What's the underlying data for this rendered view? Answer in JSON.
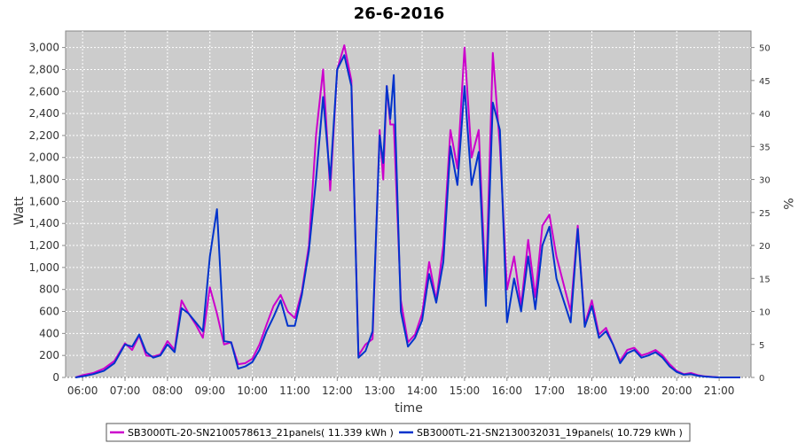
{
  "chart_data": {
    "type": "line",
    "title": "26-6-2016",
    "xlabel": "time",
    "ylabel": "Watt",
    "y2label": "%",
    "ylim": [
      0,
      3150
    ],
    "y2lim": [
      0,
      52.5
    ],
    "xlim_hours": [
      5.6,
      21.75
    ],
    "grid": true,
    "legend_position": "bottom",
    "x_ticks": [
      "06:00",
      "07:00",
      "08:00",
      "09:00",
      "10:00",
      "11:00",
      "12:00",
      "13:00",
      "14:00",
      "15:00",
      "16:00",
      "17:00",
      "18:00",
      "19:00",
      "20:00",
      "21:00"
    ],
    "y_ticks": [
      "0",
      "200",
      "400",
      "600",
      "800",
      "1,000",
      "1,200",
      "1,400",
      "1,600",
      "1,800",
      "2,000",
      "2,200",
      "2,400",
      "2,600",
      "2,800",
      "3,000"
    ],
    "y2_ticks": [
      "0",
      "5",
      "10",
      "15",
      "20",
      "25",
      "30",
      "35",
      "40",
      "45",
      "50"
    ],
    "x": [
      "05:50",
      "06:00",
      "06:15",
      "06:30",
      "06:45",
      "07:00",
      "07:10",
      "07:20",
      "07:30",
      "07:40",
      "07:50",
      "08:00",
      "08:10",
      "08:20",
      "08:30",
      "08:40",
      "08:50",
      "09:00",
      "09:10",
      "09:20",
      "09:30",
      "09:40",
      "09:50",
      "10:00",
      "10:10",
      "10:20",
      "10:30",
      "10:40",
      "10:50",
      "11:00",
      "11:10",
      "11:20",
      "11:30",
      "11:40",
      "11:50",
      "12:00",
      "12:10",
      "12:20",
      "12:30",
      "12:40",
      "12:50",
      "13:00",
      "13:05",
      "13:10",
      "13:15",
      "13:20",
      "13:30",
      "13:40",
      "13:50",
      "14:00",
      "14:10",
      "14:20",
      "14:30",
      "14:40",
      "14:50",
      "15:00",
      "15:10",
      "15:20",
      "15:30",
      "15:40",
      "15:50",
      "16:00",
      "16:10",
      "16:20",
      "16:30",
      "16:40",
      "16:50",
      "17:00",
      "17:10",
      "17:20",
      "17:30",
      "17:40",
      "17:50",
      "18:00",
      "18:10",
      "18:20",
      "18:30",
      "18:40",
      "18:50",
      "19:00",
      "19:10",
      "19:20",
      "19:30",
      "19:40",
      "19:50",
      "20:00",
      "20:10",
      "20:20",
      "20:30",
      "20:40",
      "20:50",
      "21:00",
      "21:10",
      "21:20",
      "21:30"
    ],
    "series": [
      {
        "name": "SB3000TL-20-SN2100578613_21panels( 11.339 kWh )",
        "color": "#cc00cc",
        "values": [
          0,
          20,
          40,
          80,
          150,
          310,
          250,
          380,
          200,
          190,
          210,
          330,
          250,
          700,
          580,
          480,
          360,
          820,
          580,
          300,
          320,
          120,
          130,
          170,
          300,
          480,
          650,
          750,
          600,
          540,
          780,
          1200,
          2200,
          2800,
          1700,
          2800,
          3020,
          2700,
          200,
          300,
          350,
          2250,
          1800,
          2650,
          2300,
          2300,
          700,
          320,
          390,
          580,
          1050,
          700,
          1200,
          2250,
          1900,
          3000,
          2000,
          2250,
          780,
          2950,
          2100,
          800,
          1100,
          650,
          1250,
          730,
          1380,
          1480,
          1100,
          850,
          600,
          1380,
          480,
          700,
          390,
          450,
          300,
          150,
          250,
          270,
          200,
          220,
          250,
          200,
          120,
          60,
          30,
          40,
          20,
          10,
          5,
          0,
          0,
          0,
          0
        ]
      },
      {
        "name": "SB3000TL-21-SN2130032031_19panels( 10.729 kWh )",
        "color": "#0033cc",
        "values": [
          0,
          10,
          30,
          60,
          130,
          300,
          280,
          390,
          230,
          180,
          200,
          300,
          230,
          630,
          580,
          500,
          420,
          1100,
          1530,
          330,
          320,
          80,
          100,
          140,
          250,
          420,
          550,
          700,
          470,
          470,
          750,
          1150,
          1800,
          2550,
          1800,
          2800,
          2930,
          2650,
          180,
          240,
          420,
          2200,
          1950,
          2650,
          2350,
          2750,
          600,
          280,
          360,
          520,
          940,
          680,
          1050,
          2100,
          1750,
          2650,
          1750,
          2050,
          650,
          2500,
          2250,
          500,
          900,
          600,
          1100,
          620,
          1200,
          1370,
          900,
          700,
          500,
          1350,
          460,
          650,
          360,
          420,
          300,
          130,
          220,
          250,
          180,
          200,
          230,
          180,
          100,
          50,
          25,
          30,
          15,
          8,
          3,
          0,
          0,
          0,
          0
        ]
      }
    ]
  }
}
